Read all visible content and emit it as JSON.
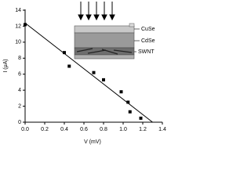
{
  "chart_data": {
    "type": "scatter",
    "x_label": "V (mV)",
    "y_label": "I (μA)",
    "xlim": [
      0,
      1.4
    ],
    "xticks": [
      {
        "value": 0,
        "label": "0.0"
      },
      0.2,
      0.4,
      0.6,
      0.8,
      {
        "value": 1,
        "label": "1.0"
      },
      1.2,
      1.4
    ],
    "ylim": [
      0,
      14
    ],
    "yticks": [
      0,
      2,
      4,
      6,
      8,
      10,
      12,
      14
    ],
    "series": [
      {
        "type": "scatter",
        "color": "#000000",
        "x": [
          0,
          0.4,
          0.45,
          0.7,
          0.8,
          0.98,
          1.05,
          1.07,
          1.18
        ],
        "values": [
          12.2,
          8.7,
          7.0,
          6.2,
          5.3,
          3.8,
          2.5,
          1.3,
          0.5
        ]
      },
      {
        "type": "line",
        "color": "#000000",
        "x": [
          0,
          1.3
        ],
        "values": [
          12.4,
          0
        ]
      }
    ],
    "annotations": [
      "CuSe",
      "CdSe",
      "SWNT"
    ]
  }
}
